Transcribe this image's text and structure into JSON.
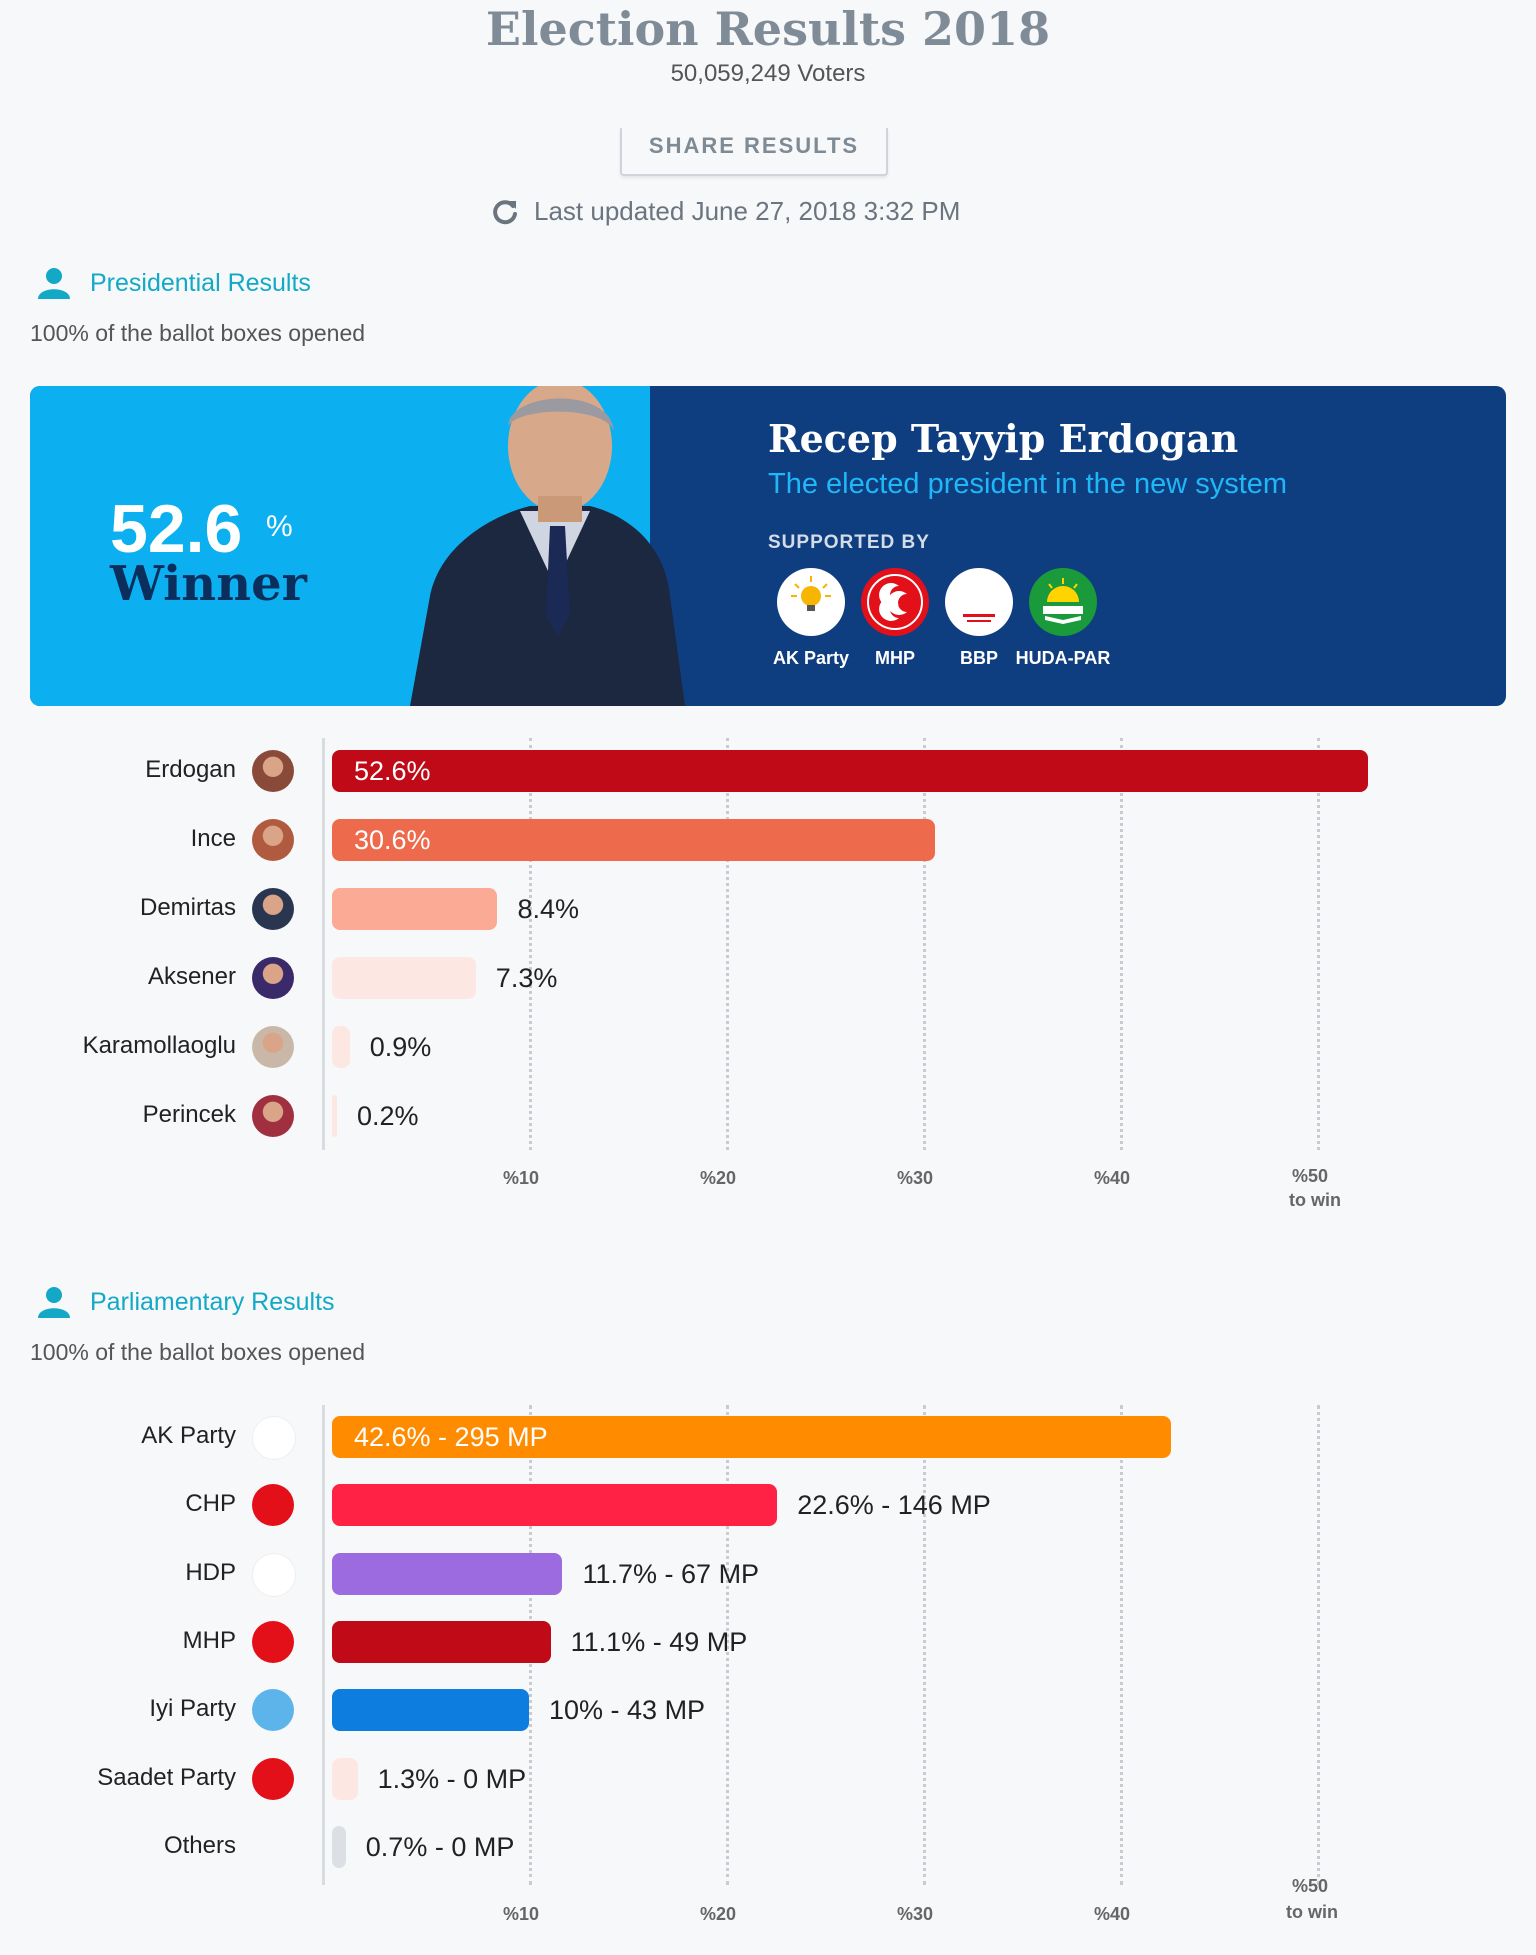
{
  "header": {
    "title": "Election Results 2018",
    "voters": "50,059,249 Voters",
    "share_label": "SHARE RESULTS",
    "updated": "Last updated June 27, 2018 3:32 PM"
  },
  "presidential": {
    "section_label": "Presidential Results",
    "ballots": "100% of the ballot boxes opened",
    "winner": {
      "percent": "52.6",
      "percent_sign": "%",
      "label": "Winner",
      "name": "Recep Tayyip Erdogan",
      "tagline": "The elected president in the new system",
      "supported_by": "SUPPORTED BY",
      "parties": [
        {
          "name": "AK Party",
          "logo_text": "AK PARTİ"
        },
        {
          "name": "MHP",
          "logo_text": "☾☾"
        },
        {
          "name": "BBP",
          "logo_text": "BÜYÜK BİRLİK PARTİSİ"
        },
        {
          "name": "HUDA-PAR",
          "logo_text": "HUDA PAR"
        }
      ]
    },
    "ticks": [
      "%10",
      "%20",
      "%30",
      "%40",
      "%50"
    ],
    "win_label": "to win"
  },
  "parliamentary": {
    "section_label": "Parliamentary Results",
    "ballots": "100% of the ballot boxes opened",
    "ticks": [
      "%10",
      "%20",
      "%30",
      "%40",
      "%50"
    ],
    "win_label": "to win"
  },
  "colors": {
    "accent": "#13a9c6",
    "banner_light": "#0cb0f0",
    "banner_dark": "#0f3e80"
  },
  "chart_data": [
    {
      "type": "bar",
      "orientation": "horizontal",
      "categories": [
        "Erdogan",
        "Ince",
        "Demirtas",
        "Aksener",
        "Karamollaoglu",
        "Perincek"
      ],
      "values": [
        52.6,
        30.6,
        8.4,
        7.3,
        0.9,
        0.2
      ],
      "labels": [
        "52.6%",
        "30.6%",
        "8.4%",
        "7.3%",
        "0.9%",
        "0.2%"
      ],
      "colors": [
        "#c00a18",
        "#ee6a4c",
        "#fbaa96",
        "#fde7e3",
        "#fde7e3",
        "#fde7e3"
      ],
      "xlim": [
        0,
        55
      ],
      "grid": true
    },
    {
      "type": "bar",
      "orientation": "horizontal",
      "categories": [
        "AK Party",
        "CHP",
        "HDP",
        "MHP",
        "Iyi Party",
        "Saadet Party",
        "Others"
      ],
      "values": [
        42.6,
        22.6,
        11.7,
        11.1,
        10,
        1.3,
        0.7
      ],
      "labels": [
        "42.6% - 295 MP",
        "22.6% - 146 MP",
        "11.7% - 67 MP",
        "11.1% - 49 MP",
        "10% - 43 MP",
        "1.3% - 0 MP",
        "0.7% - 0 MP"
      ],
      "colors": [
        "#ff8c00",
        "#ff2244",
        "#9b6bdf",
        "#c00a18",
        "#0e7de0",
        "#fde7e3",
        "#dcdfe3"
      ],
      "xlim": [
        0,
        55
      ],
      "grid": true
    }
  ]
}
